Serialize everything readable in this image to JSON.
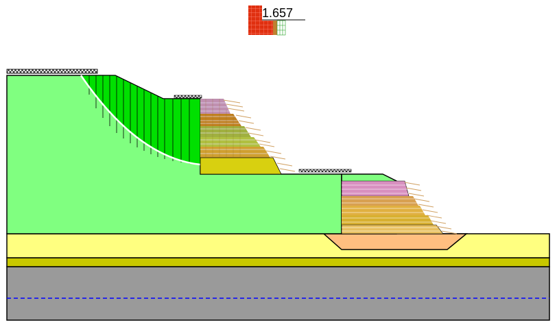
{
  "factor_of_safety": {
    "value": "1.657"
  },
  "colors": {
    "embankment_soil": "#80ff80",
    "slip_mass": "#00e000",
    "sand_layer": "#ffff80",
    "olive_layer": "#c8c800",
    "bedrock": "#9a9a9a",
    "foundation_pad": "#ffbf80",
    "water_table": "#0000ff",
    "slip_surface": "#ffffff",
    "reinforcement_pink": "#d090c0",
    "reinforcement_brown": "#c08020",
    "reinforcement_olive": "#a0b040",
    "reinforcement_yellow": "#e0e020",
    "reinforcement_tan": "#e8c060",
    "anchor_lines": "#d0a060",
    "fence": "#000000"
  },
  "icons": {
    "fos_marker": "factor-of-safety-grid-icon",
    "fence": "fence-hatch-icon"
  },
  "water_table": {
    "style": "dashed"
  },
  "layers": [
    "embankment",
    "sand",
    "olive",
    "bedrock"
  ]
}
